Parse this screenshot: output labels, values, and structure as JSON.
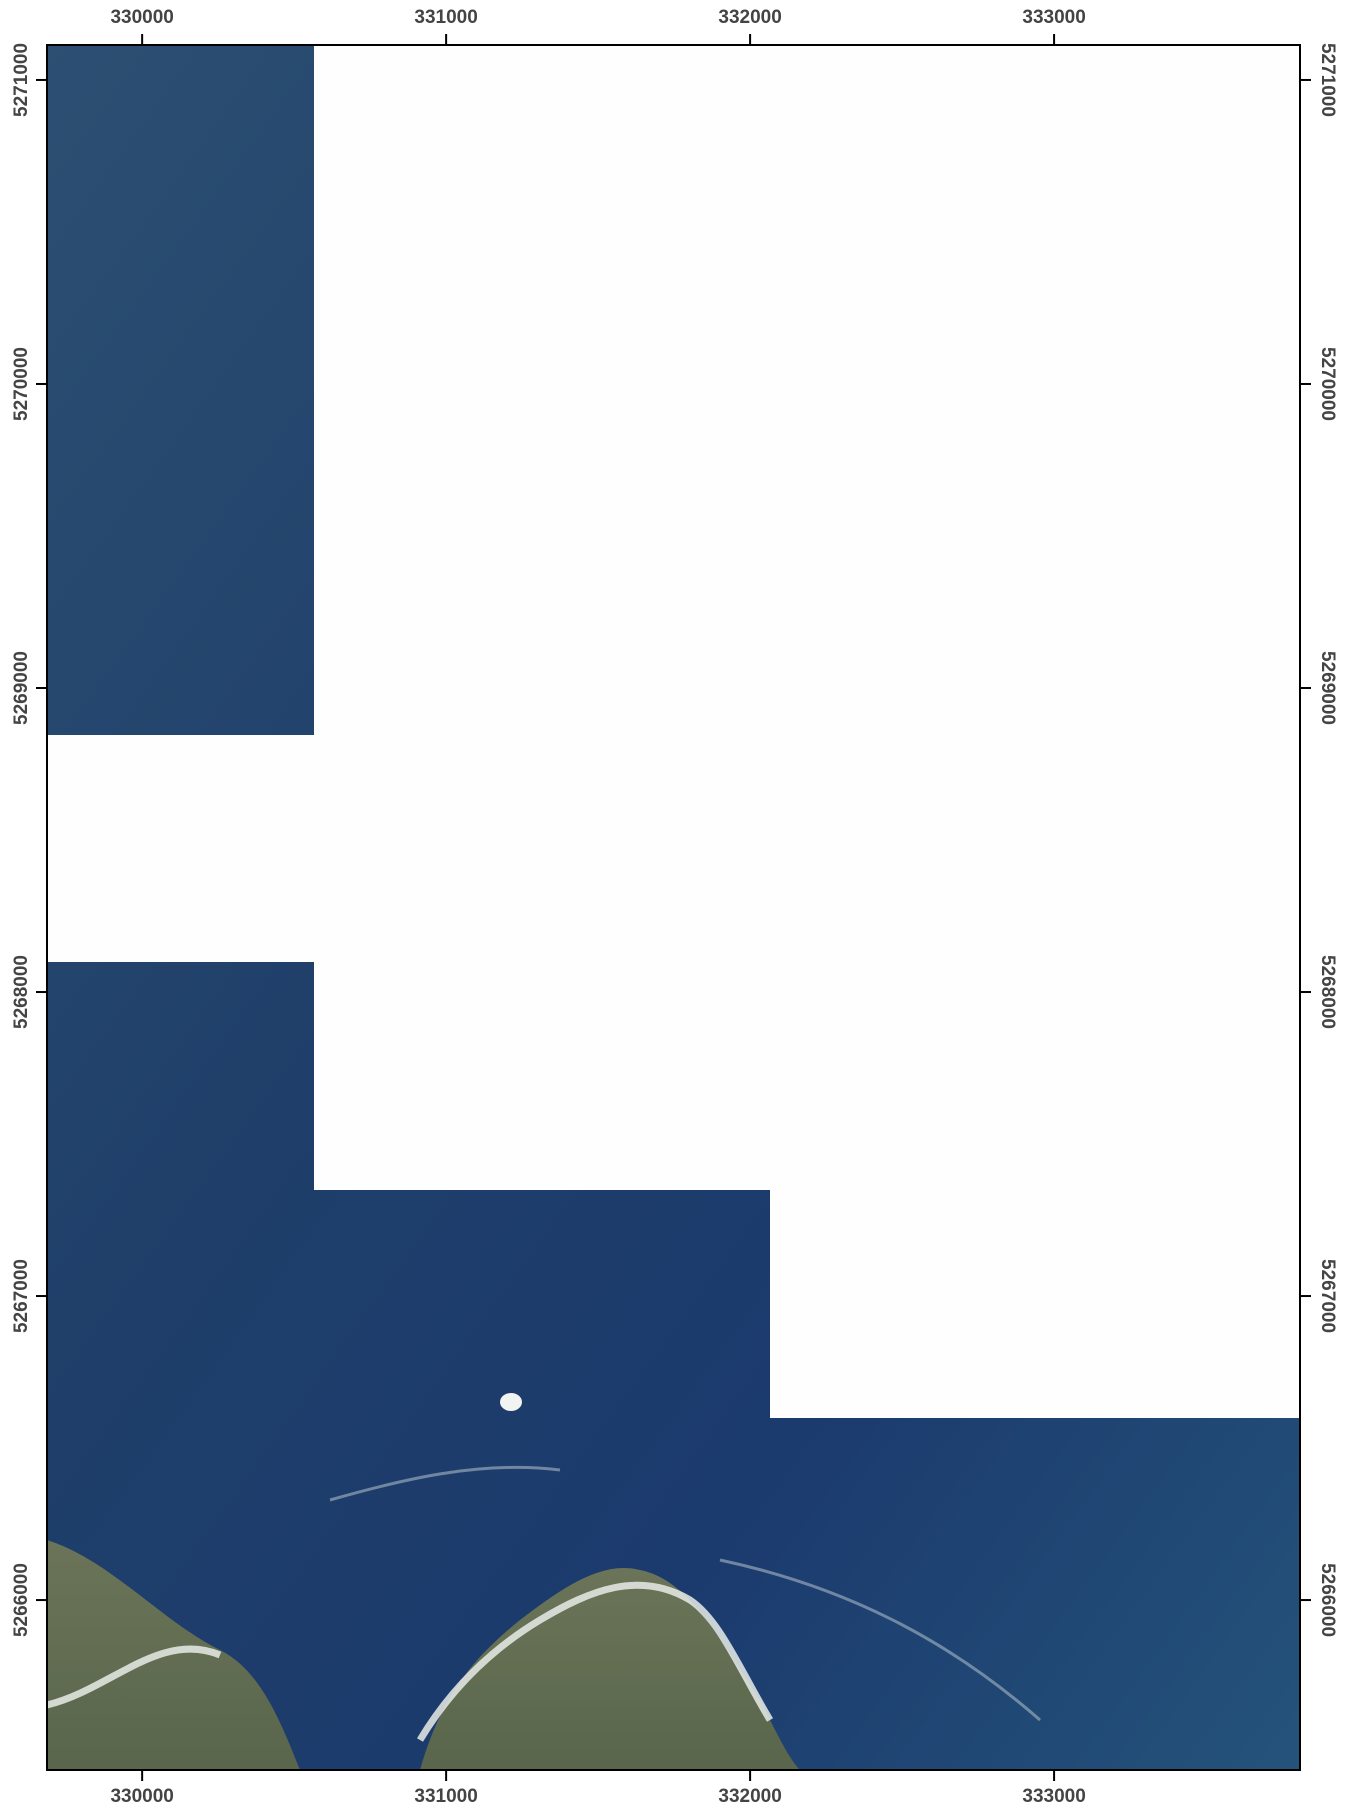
{
  "chart_data": {
    "type": "map",
    "xlim": [
      329687,
      333809
    ],
    "ylim": [
      5265441,
      5271115
    ],
    "xticks": [
      330000,
      331000,
      332000,
      333000
    ],
    "yticks": [
      5266000,
      5267000,
      5268000,
      5269000,
      5270000,
      5271000
    ]
  }
}
